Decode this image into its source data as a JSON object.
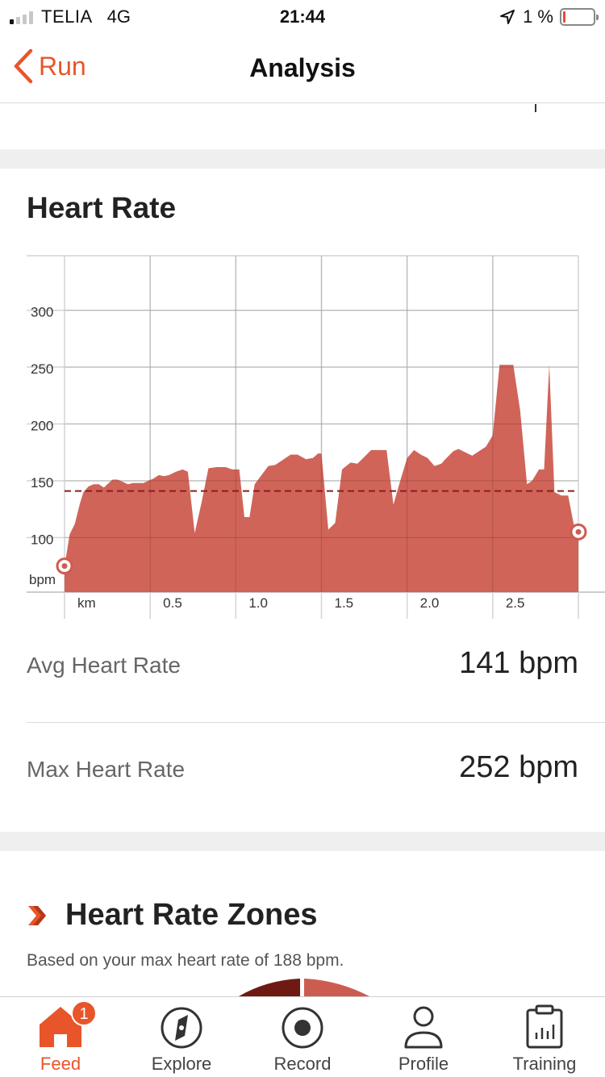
{
  "status": {
    "carrier": "TELIA",
    "network": "4G",
    "time": "21:44",
    "battery_text": "1 %"
  },
  "nav": {
    "back_label": "Run",
    "title": "Analysis"
  },
  "heart_rate_card": {
    "title": "Heart Rate",
    "avg_label": "Avg Heart Rate",
    "avg_value": "141 bpm",
    "max_label": "Max Heart Rate",
    "max_value": "252 bpm"
  },
  "zones": {
    "title": "Heart Rate Zones",
    "subtitle": "Based on your max heart rate of 188 bpm."
  },
  "tabs": [
    {
      "label": "Feed",
      "icon": "home-icon",
      "badge": "1",
      "active": true
    },
    {
      "label": "Explore",
      "icon": "compass-icon",
      "active": false
    },
    {
      "label": "Record",
      "icon": "record-icon",
      "active": false
    },
    {
      "label": "Profile",
      "icon": "person-icon",
      "active": false
    },
    {
      "label": "Training",
      "icon": "training-calendar-icon",
      "active": false
    }
  ],
  "colors": {
    "accent": "#e8552a",
    "area_fill": "#cd5c50",
    "avg_line": "#8b1e1e"
  },
  "chart_data": {
    "type": "area",
    "xlabel": "km",
    "ylabel": "bpm",
    "x_ticks": [
      "0.5",
      "1.0",
      "1.5",
      "2.0",
      "2.5"
    ],
    "x_tick_values": [
      0.5,
      1.0,
      1.5,
      2.0,
      2.5
    ],
    "y_ticks": [
      "100",
      "150",
      "200",
      "250",
      "300"
    ],
    "y_tick_values": [
      100,
      150,
      200,
      250,
      300
    ],
    "xlim": [
      0,
      3.0
    ],
    "ylim": [
      52,
      348
    ],
    "avg_line": 141,
    "series": [
      {
        "x": [
          0,
          0.03,
          0.06,
          0.09,
          0.11,
          0.14,
          0.17,
          0.2,
          0.23,
          0.25,
          0.28,
          0.31,
          0.34,
          0.37,
          0.4,
          0.43,
          0.46,
          0.49,
          0.52,
          0.55,
          0.58,
          0.61,
          0.65,
          0.69,
          0.72,
          0.76,
          0.8,
          0.84,
          0.89,
          0.94,
          0.98,
          1.02,
          1.05,
          1.08,
          1.11,
          1.15,
          1.19,
          1.23,
          1.28,
          1.32,
          1.36,
          1.41,
          1.45,
          1.48,
          1.5,
          1.54,
          1.58,
          1.62,
          1.67,
          1.71,
          1.75,
          1.79,
          1.84,
          1.88,
          1.92,
          1.96,
          2.0,
          2.04,
          2.08,
          2.12,
          2.16,
          2.2,
          2.23,
          2.27,
          2.3,
          2.34,
          2.38,
          2.42,
          2.46,
          2.5,
          2.54,
          2.58,
          2.62,
          2.66,
          2.7,
          2.73,
          2.77,
          2.8,
          2.83,
          2.86,
          2.9,
          2.94,
          2.98,
          3.0
        ],
        "values": [
          75,
          103,
          112,
          130,
          140,
          145,
          147,
          147,
          144,
          147,
          151,
          151,
          149,
          147,
          148,
          148,
          148,
          150,
          152,
          155,
          154,
          155,
          158,
          160,
          158,
          104,
          131,
          161,
          162,
          162,
          160,
          160,
          118,
          118,
          147,
          155,
          163,
          164,
          169,
          173,
          173,
          169,
          170,
          174,
          174,
          107,
          113,
          160,
          166,
          165,
          171,
          177,
          177,
          177,
          129,
          150,
          170,
          177,
          173,
          170,
          163,
          165,
          170,
          176,
          178,
          175,
          172,
          176,
          180,
          190,
          252,
          252,
          252,
          212,
          147,
          150,
          160,
          160,
          252,
          140,
          137,
          137,
          106,
          105
        ]
      }
    ],
    "end_markers": [
      {
        "x": 0,
        "y": 75
      },
      {
        "x": 3.0,
        "y": 105
      }
    ]
  }
}
